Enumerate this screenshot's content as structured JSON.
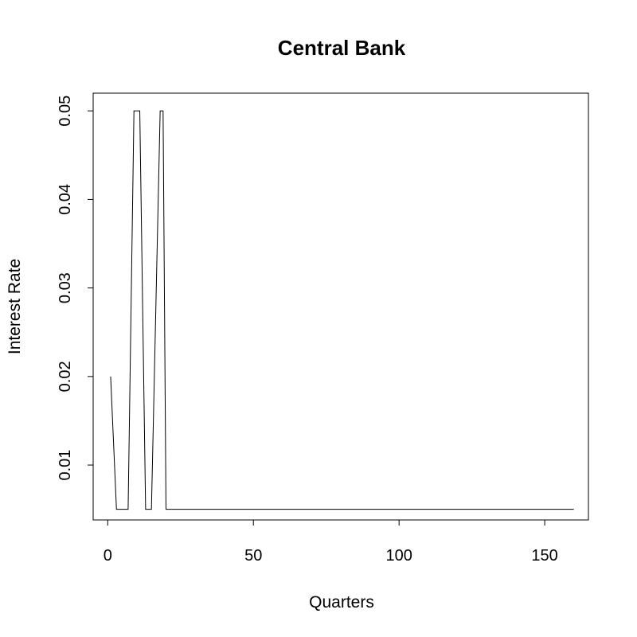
{
  "chart_data": {
    "type": "line",
    "title": "Central Bank",
    "xlabel": "Quarters",
    "ylabel": "Interest Rate",
    "xlim": [
      -5,
      165
    ],
    "ylim": [
      0.0038,
      0.052
    ],
    "xticks": [
      0,
      50,
      100,
      150
    ],
    "yticks": [
      0.01,
      0.02,
      0.03,
      0.04,
      0.05
    ],
    "ytick_labels": [
      "0.01",
      "0.02",
      "0.03",
      "0.04",
      "0.05"
    ],
    "grid": false,
    "line_color": "#000000",
    "series": [
      {
        "x": [
          1,
          3,
          7,
          9,
          11,
          13,
          15,
          18,
          19,
          20,
          160
        ],
        "y": [
          0.02,
          0.005,
          0.005,
          0.05,
          0.05,
          0.005,
          0.005,
          0.05,
          0.05,
          0.005,
          0.005
        ]
      }
    ]
  }
}
